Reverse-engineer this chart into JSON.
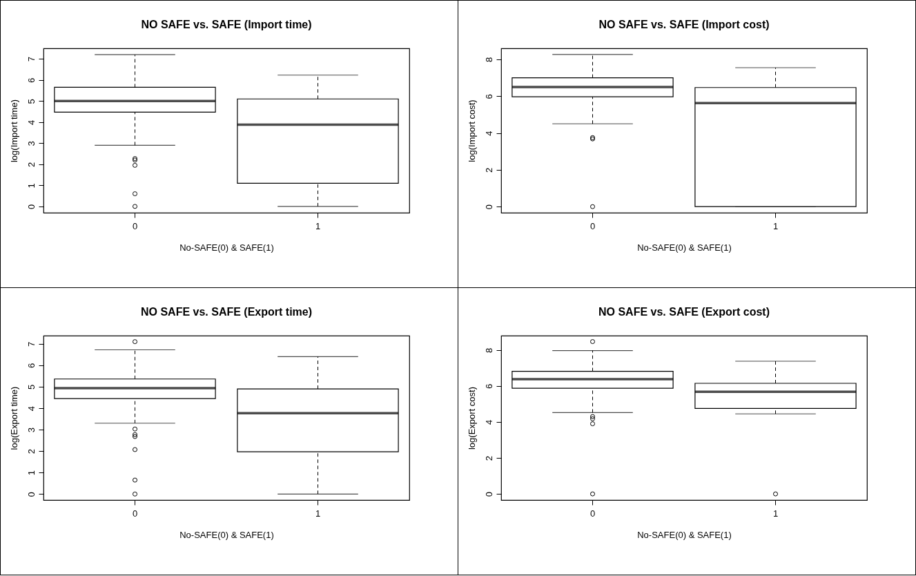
{
  "chart_data": [
    {
      "type": "box",
      "title": "NO SAFE vs. SAFE (Import time)",
      "xlabel": "No-SAFE(0) & SAFE(1)",
      "ylabel": "log(Import time)",
      "categories": [
        "0",
        "1"
      ],
      "ylim": [
        -0.3,
        7.5
      ],
      "yticks": [
        0,
        1,
        2,
        3,
        4,
        5,
        6,
        7
      ],
      "boxes": [
        {
          "low": 2.9,
          "q1": 4.47,
          "median": 5.0,
          "q3": 5.65,
          "high": 7.2,
          "outliers": [
            2.27,
            2.2,
            1.95,
            0.6,
            0
          ]
        },
        {
          "low": 0,
          "q1": 1.1,
          "median": 3.88,
          "q3": 5.1,
          "high": 6.23
        }
      ]
    },
    {
      "type": "box",
      "title": "NO SAFE vs. SAFE (Import cost)",
      "xlabel": "No-SAFE(0) & SAFE(1)",
      "ylabel": "log(Import cost)",
      "categories": [
        "0",
        "1"
      ],
      "ylim": [
        -0.33,
        8.6
      ],
      "yticks": [
        0,
        2,
        4,
        6,
        8
      ],
      "boxes": [
        {
          "low": 4.5,
          "q1": 5.97,
          "median": 6.5,
          "q3": 7.0,
          "high": 8.27,
          "outliers": [
            3.75,
            3.68,
            0
          ]
        },
        {
          "low": 0,
          "q1": 0,
          "median": 5.63,
          "q3": 6.47,
          "high": 7.55
        }
      ]
    },
    {
      "type": "box",
      "title": "NO SAFE vs. SAFE (Export time)",
      "xlabel": "No-SAFE(0) & SAFE(1)",
      "ylabel": "log(Export time)",
      "categories": [
        "0",
        "1"
      ],
      "ylim": [
        -0.28,
        7.38
      ],
      "yticks": [
        0,
        1,
        2,
        3,
        4,
        5,
        6,
        7
      ],
      "boxes": [
        {
          "low": 3.3,
          "q1": 4.45,
          "median": 4.93,
          "q3": 5.36,
          "high": 6.72,
          "outliers": [
            7.1,
            3.03,
            2.77,
            2.68,
            2.07,
            0.65,
            0
          ]
        },
        {
          "low": 0,
          "q1": 1.97,
          "median": 3.77,
          "q3": 4.9,
          "high": 6.4
        }
      ]
    },
    {
      "type": "box",
      "title": "NO SAFE vs. SAFE (Export cost)",
      "xlabel": "No-SAFE(0) & SAFE(1)",
      "ylabel": "log(Export cost)",
      "categories": [
        "0",
        "1"
      ],
      "ylim": [
        -0.34,
        8.8
      ],
      "yticks": [
        0,
        2,
        4,
        6,
        8
      ],
      "boxes": [
        {
          "low": 4.52,
          "q1": 5.88,
          "median": 6.38,
          "q3": 6.82,
          "high": 7.97,
          "outliers": [
            8.47,
            4.3,
            4.18,
            3.9,
            0
          ]
        },
        {
          "low": 4.45,
          "q1": 4.75,
          "median": 5.68,
          "q3": 6.15,
          "high": 7.38,
          "outliers": [
            0
          ]
        }
      ]
    }
  ]
}
